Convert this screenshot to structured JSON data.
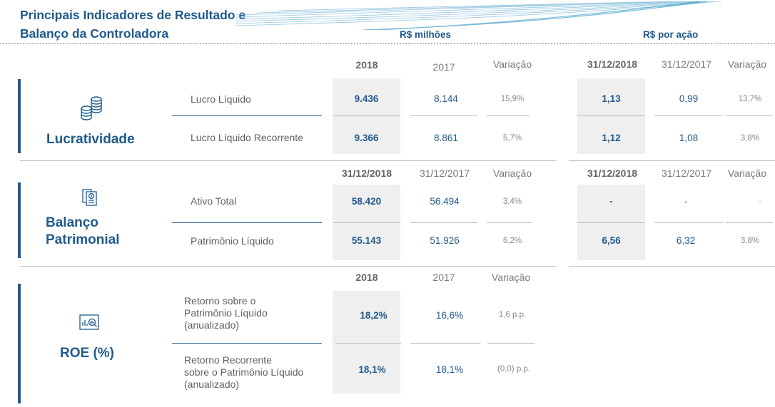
{
  "title_line1": "Principais Indicadores de Resultado e",
  "title_line2": "Balanço da Controladora",
  "units": {
    "millions": "R$ milhões",
    "per_share": "R$ por ação"
  },
  "lucratividade": {
    "section": "Lucratividade",
    "icon": "coins-icon",
    "headers": {
      "a": "2018",
      "b": "2017",
      "c": "Variação",
      "d": "31/12/2018",
      "e": "31/12/2017",
      "f": "Variação"
    },
    "rows": [
      {
        "label": "Lucro Líquido",
        "a": "9.436",
        "b": "8.144",
        "c": "15,9%",
        "d": "1,13",
        "e": "0,99",
        "f": "13,7%"
      },
      {
        "label": "Lucro Líquido Recorrente",
        "a": "9.366",
        "b": "8.861",
        "c": "5,7%",
        "d": "1,12",
        "e": "1,08",
        "f": "3,8%"
      }
    ]
  },
  "balanco": {
    "section1": "Balanço",
    "section2": "Patrimonial",
    "icon": "balance-document-icon",
    "headers": {
      "a": "31/12/2018",
      "b": "31/12/2017",
      "c": "Variação",
      "d": "31/12/2018",
      "e": "31/12/2017",
      "f": "Variação"
    },
    "rows": [
      {
        "label": "Ativo Total",
        "a": "58.420",
        "b": "56.494",
        "c": "3,4%",
        "d": "-",
        "e": "-",
        "f": "-"
      },
      {
        "label": "Patrimônio Líquido",
        "a": "55.143",
        "b": "51.926",
        "c": "6,2%",
        "d": "6,56",
        "e": "6,32",
        "f": "3,8%"
      }
    ]
  },
  "roe": {
    "section": "ROE (%)",
    "icon": "analytics-chart-icon",
    "headers": {
      "a": "2018",
      "b": "2017",
      "c": "Variação"
    },
    "rows": [
      {
        "label1": "Retorno sobre o",
        "label2": "Patrimônio Líquido",
        "label3": "(anualizado)",
        "a": "18,2%",
        "b": "16,6%",
        "c": "1,6 p.p."
      },
      {
        "label1": "Retorno Recorrente",
        "label2": "sobre o Patrimônio Líquido",
        "label3": "(anualizado)",
        "a": "18,1%",
        "b": "18,1%",
        "c": "(0,0) p.p."
      }
    ]
  }
}
